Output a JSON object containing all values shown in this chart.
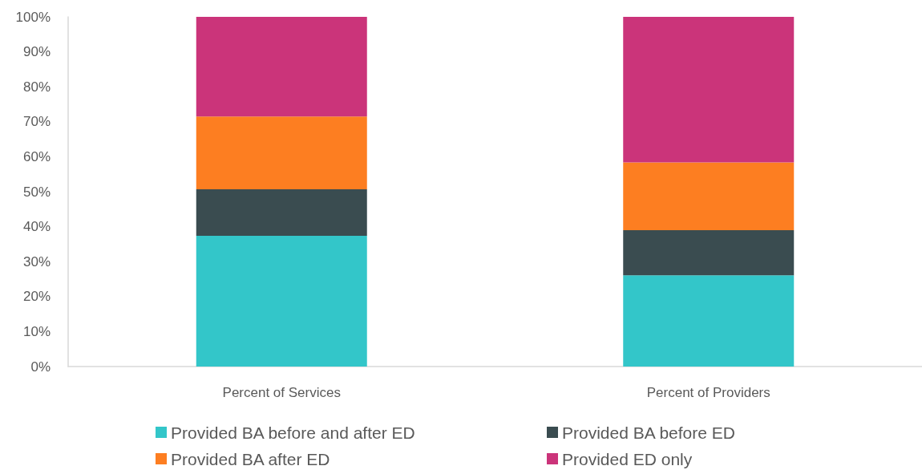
{
  "chart_data": {
    "type": "bar",
    "stacked": true,
    "categories": [
      "Percent of Services",
      "Percent of Providers"
    ],
    "series": [
      {
        "name": "Provided BA before and after ED",
        "color": "#33c6c9",
        "values": [
          37.4,
          26.1
        ]
      },
      {
        "name": "Provided BA before ED",
        "color": "#3a4c50",
        "values": [
          13.3,
          12.9
        ]
      },
      {
        "name": "Provided BA after ED",
        "color": "#fd7e21",
        "values": [
          20.8,
          19.4
        ]
      },
      {
        "name": "Provided ED only",
        "color": "#cb347a",
        "values": [
          28.5,
          41.6
        ]
      }
    ],
    "ylim": [
      0,
      100
    ],
    "yticks": [
      {
        "value": 0,
        "label": "0%"
      },
      {
        "value": 10,
        "label": "10%"
      },
      {
        "value": 20,
        "label": "20%"
      },
      {
        "value": 30,
        "label": "30%"
      },
      {
        "value": 40,
        "label": "40%"
      },
      {
        "value": 50,
        "label": "50%"
      },
      {
        "value": 60,
        "label": "60%"
      },
      {
        "value": 70,
        "label": "70%"
      },
      {
        "value": 80,
        "label": "80%"
      },
      {
        "value": 90,
        "label": "90%"
      },
      {
        "value": 100,
        "label": "100%"
      }
    ],
    "grid": false,
    "legend": "bottom"
  }
}
